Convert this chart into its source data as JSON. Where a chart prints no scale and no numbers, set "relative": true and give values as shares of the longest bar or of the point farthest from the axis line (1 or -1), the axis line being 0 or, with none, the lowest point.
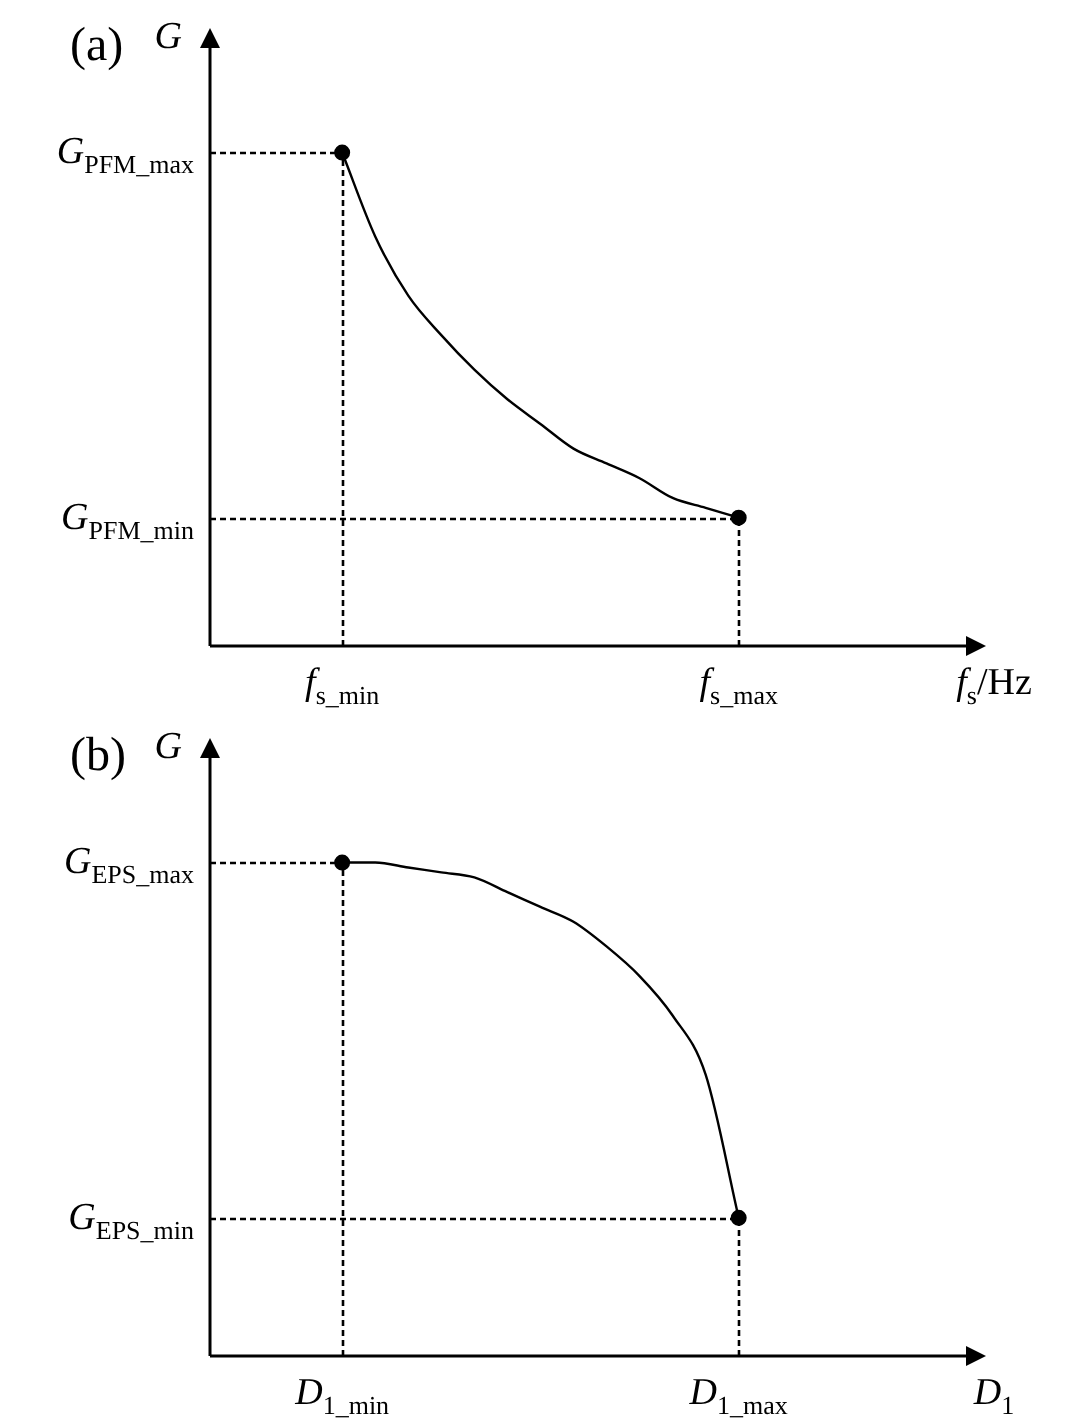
{
  "chart_data": [
    {
      "type": "line",
      "title": "(a)",
      "xlabel": "f$_{s}$/Hz",
      "ylabel": "G",
      "relative": true,
      "categories": [
        null,
        null,
        null,
        null,
        "f$_{s_min}$",
        null,
        null,
        null,
        null,
        null,
        null,
        null,
        null,
        null,
        null,
        null,
        "f$_{s_max}$",
        null,
        null,
        null,
        null,
        null,
        null,
        null
      ],
      "series": [
        {
          "type": "line",
          "color": "#000000",
          "marker": "none",
          "values": [
            null,
            null,
            null,
            null,
            1,
            0.83,
            0.71,
            0.63,
            0.56,
            0.5,
            0.45,
            0.4,
            0.37,
            0.34,
            0.3,
            0.28,
            0.26,
            null,
            null,
            null,
            null,
            null,
            null,
            null
          ]
        },
        {
          "type": "scatter",
          "color": "#000000",
          "marker": "circle",
          "values": [
            null,
            null,
            null,
            null,
            1,
            null,
            null,
            null,
            null,
            null,
            null,
            null,
            null,
            null,
            null,
            null,
            0.26,
            null,
            null,
            null,
            null,
            null,
            null,
            null
          ]
        }
      ],
      "ref_lines": [
        {
          "axis": "y",
          "value": 1,
          "label": "G$_{PFM_max}$",
          "line_style": "dotted"
        },
        {
          "axis": "y",
          "value": 0.26,
          "label": "G$_{PFM_min}$",
          "line_style": "dotted"
        }
      ]
    },
    {
      "type": "line",
      "title": "(b)",
      "xlabel": "D$_{1}$",
      "ylabel": "G",
      "relative": true,
      "categories": [
        null,
        null,
        null,
        null,
        "D$_{1_min}$",
        null,
        null,
        null,
        null,
        null,
        null,
        null,
        null,
        null,
        null,
        null,
        "D$_{1_max}$",
        null,
        null,
        null,
        null,
        null,
        null,
        null
      ],
      "series": [
        {
          "type": "line",
          "color": "#000000",
          "marker": "none",
          "values": [
            null,
            null,
            null,
            null,
            1,
            1,
            0.99,
            0.98,
            0.97,
            0.94,
            0.91,
            0.88,
            0.83,
            0.77,
            0.69,
            0.57,
            0.28,
            null,
            null,
            null,
            null,
            null,
            null,
            null
          ]
        },
        {
          "type": "scatter",
          "color": "#000000",
          "marker": "circle",
          "values": [
            null,
            null,
            null,
            null,
            1,
            null,
            null,
            null,
            null,
            null,
            null,
            null,
            null,
            null,
            null,
            null,
            0.28,
            null,
            null,
            null,
            null,
            null,
            null,
            null
          ]
        }
      ],
      "ref_lines": [
        {
          "axis": "y",
          "value": 1,
          "label": "G$_{EPS_max}$",
          "line_style": "dotted"
        },
        {
          "axis": "y",
          "value": 0.28,
          "label": "G$_{EPS_min}$",
          "line_style": "dotted"
        }
      ]
    }
  ]
}
